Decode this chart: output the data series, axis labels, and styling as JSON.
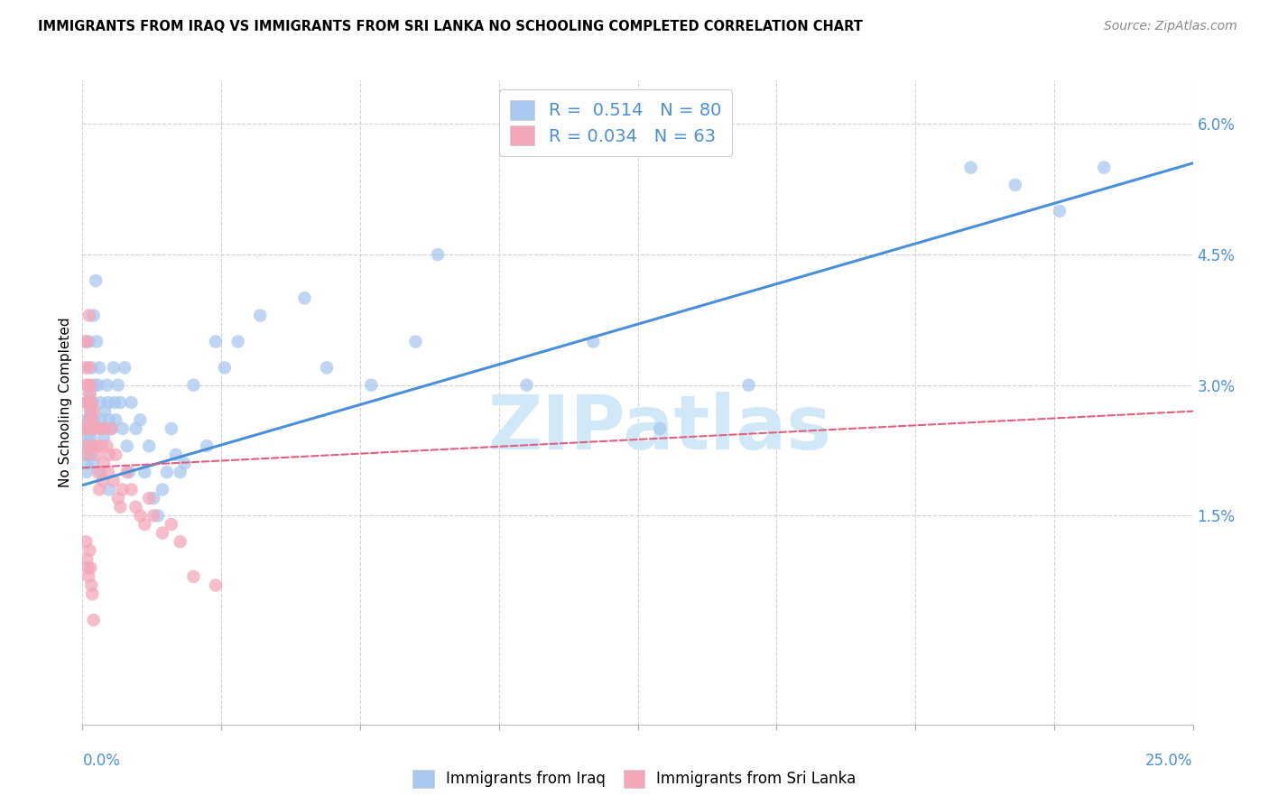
{
  "title": "IMMIGRANTS FROM IRAQ VS IMMIGRANTS FROM SRI LANKA NO SCHOOLING COMPLETED CORRELATION CHART",
  "source": "Source: ZipAtlas.com",
  "ylabel": "No Schooling Completed",
  "x_min": 0.0,
  "x_max": 25.0,
  "y_min": -0.9,
  "y_max": 6.5,
  "y_ticks": [
    1.5,
    3.0,
    4.5,
    6.0
  ],
  "y_tick_labels": [
    "1.5%",
    "3.0%",
    "4.5%",
    "6.0%"
  ],
  "legend_iraq": "Immigrants from Iraq",
  "legend_sri_lanka": "Immigrants from Sri Lanka",
  "R_iraq": 0.514,
  "N_iraq": 80,
  "R_sri_lanka": 0.034,
  "N_sri_lanka": 63,
  "iraq_color": "#A8C8F0",
  "iraq_line_color": "#4A90D9",
  "sri_lanka_color": "#F4A7B9",
  "sri_lanka_line_color": "#E06080",
  "watermark_color": "#D0E8F8",
  "iraq_line_start_y": 1.85,
  "iraq_line_end_y": 5.55,
  "sri_lanka_line_start_y": 2.05,
  "sri_lanka_line_end_y": 2.7,
  "iraq_x": [
    0.05,
    0.07,
    0.08,
    0.09,
    0.1,
    0.1,
    0.11,
    0.12,
    0.13,
    0.14,
    0.15,
    0.15,
    0.16,
    0.17,
    0.18,
    0.19,
    0.2,
    0.2,
    0.21,
    0.22,
    0.23,
    0.25,
    0.27,
    0.28,
    0.3,
    0.32,
    0.35,
    0.38,
    0.4,
    0.42,
    0.45,
    0.48,
    0.5,
    0.55,
    0.58,
    0.6,
    0.65,
    0.7,
    0.72,
    0.75,
    0.8,
    0.85,
    0.9,
    0.95,
    1.0,
    1.05,
    1.1,
    1.2,
    1.3,
    1.4,
    1.5,
    1.6,
    1.7,
    1.8,
    1.9,
    2.0,
    2.1,
    2.2,
    2.5,
    2.8,
    3.0,
    3.2,
    3.5,
    4.0,
    5.0,
    5.5,
    6.5,
    7.5,
    8.0,
    10.0,
    11.5,
    13.0,
    15.0,
    20.0,
    21.0,
    22.0,
    23.0,
    2.3,
    0.4,
    0.6
  ],
  "iraq_y": [
    2.2,
    2.5,
    2.3,
    2.0,
    2.8,
    2.1,
    2.6,
    2.4,
    2.3,
    2.5,
    3.5,
    2.6,
    2.9,
    2.7,
    2.4,
    2.2,
    3.2,
    2.8,
    2.5,
    2.3,
    2.1,
    3.8,
    2.6,
    3.0,
    4.2,
    3.5,
    3.0,
    3.2,
    2.8,
    2.6,
    2.5,
    2.4,
    2.7,
    3.0,
    2.8,
    2.6,
    2.5,
    3.2,
    2.8,
    2.6,
    3.0,
    2.8,
    2.5,
    3.2,
    2.3,
    2.0,
    2.8,
    2.5,
    2.6,
    2.0,
    2.3,
    1.7,
    1.5,
    1.8,
    2.0,
    2.5,
    2.2,
    2.0,
    3.0,
    2.3,
    3.5,
    3.2,
    3.5,
    3.8,
    4.0,
    3.2,
    3.0,
    3.5,
    4.5,
    3.0,
    3.5,
    2.5,
    3.0,
    5.5,
    5.3,
    5.0,
    5.5,
    2.1,
    2.0,
    1.8
  ],
  "sri_lanka_x": [
    0.03,
    0.05,
    0.06,
    0.07,
    0.08,
    0.09,
    0.1,
    0.1,
    0.11,
    0.12,
    0.13,
    0.14,
    0.15,
    0.15,
    0.16,
    0.17,
    0.18,
    0.19,
    0.2,
    0.21,
    0.22,
    0.23,
    0.25,
    0.27,
    0.3,
    0.32,
    0.35,
    0.38,
    0.4,
    0.42,
    0.45,
    0.48,
    0.5,
    0.55,
    0.58,
    0.6,
    0.65,
    0.7,
    0.75,
    0.8,
    0.85,
    0.9,
    1.0,
    1.1,
    1.2,
    1.3,
    1.4,
    1.5,
    1.6,
    1.8,
    2.0,
    2.2,
    2.5,
    3.0,
    0.08,
    0.1,
    0.12,
    0.14,
    0.16,
    0.18,
    0.2,
    0.22,
    0.25
  ],
  "sri_lanka_y": [
    2.5,
    2.3,
    3.5,
    3.2,
    3.0,
    2.8,
    3.5,
    2.2,
    2.8,
    3.0,
    2.5,
    3.2,
    3.8,
    2.6,
    2.5,
    2.9,
    3.0,
    2.7,
    2.5,
    2.3,
    2.8,
    2.6,
    2.7,
    2.5,
    2.3,
    2.2,
    2.0,
    1.8,
    2.5,
    2.3,
    1.9,
    2.1,
    2.5,
    2.3,
    2.0,
    2.2,
    2.5,
    1.9,
    2.2,
    1.7,
    1.6,
    1.8,
    2.0,
    1.8,
    1.6,
    1.5,
    1.4,
    1.7,
    1.5,
    1.3,
    1.4,
    1.2,
    0.8,
    0.7,
    1.2,
    1.0,
    0.9,
    0.8,
    1.1,
    0.9,
    0.7,
    0.6,
    0.3
  ]
}
